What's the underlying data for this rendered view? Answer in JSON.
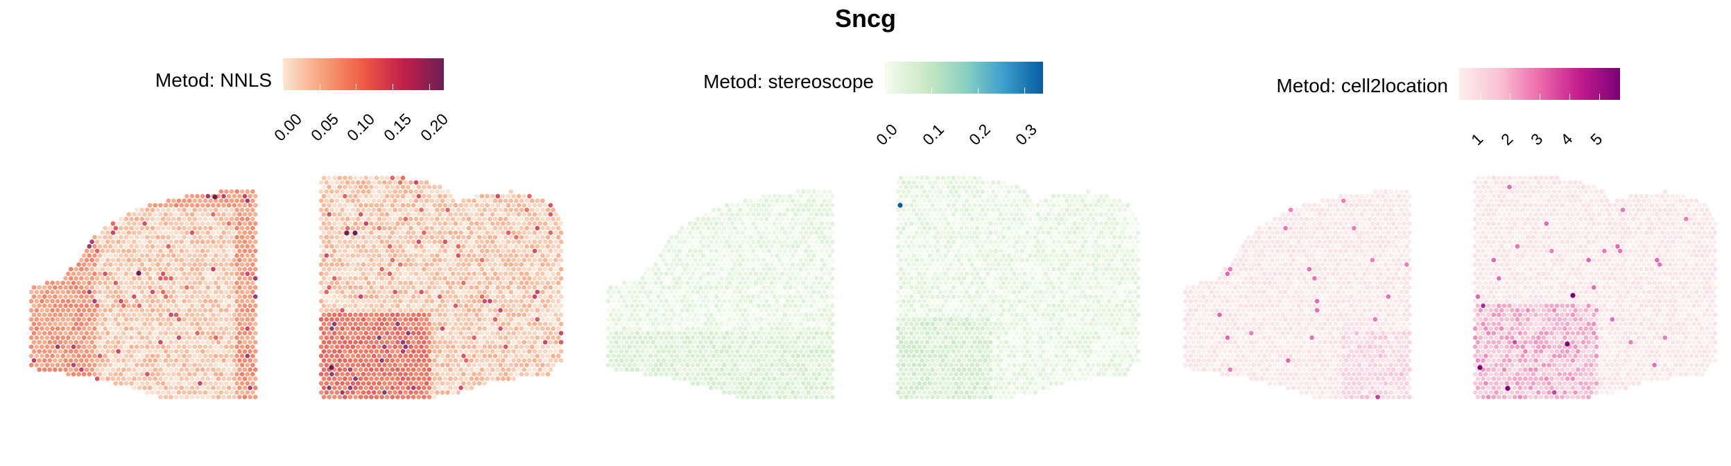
{
  "title": "Sncg",
  "chart_data": [
    {
      "type": "spatial-scatter",
      "method_label": "Metod: NNLS",
      "colorbar": {
        "min": 0.0,
        "max": 0.22,
        "colors": [
          "#fae6d2",
          "#f7a07a",
          "#ef5a45",
          "#c21f4a",
          "#6b1f56"
        ],
        "ticks": [
          "0.00",
          "0.05",
          "0.10",
          "0.15",
          "0.20"
        ],
        "tick_values": [
          0.0,
          0.05,
          0.1,
          0.15,
          0.2
        ]
      }
    },
    {
      "type": "spatial-scatter",
      "method_label": "Metod: stereoscope",
      "colorbar": {
        "min": 0.0,
        "max": 0.34,
        "colors": [
          "#f6fbf2",
          "#cbeac4",
          "#8ed2c0",
          "#3c9fcc",
          "#075ca3"
        ],
        "ticks": [
          "0.0",
          "0.1",
          "0.2",
          "0.3"
        ],
        "tick_values": [
          0.0,
          0.1,
          0.2,
          0.3
        ]
      }
    },
    {
      "type": "spatial-scatter",
      "method_label": "Metod: cell2location",
      "colorbar": {
        "min": 0.3,
        "max": 5.7,
        "colors": [
          "#fdeeee",
          "#f9c2d4",
          "#ec6aaa",
          "#c41b8c",
          "#7a0177"
        ],
        "ticks": [
          "1",
          "2",
          "3",
          "4",
          "5"
        ],
        "tick_values": [
          1,
          2,
          3,
          4,
          5
        ]
      }
    }
  ]
}
